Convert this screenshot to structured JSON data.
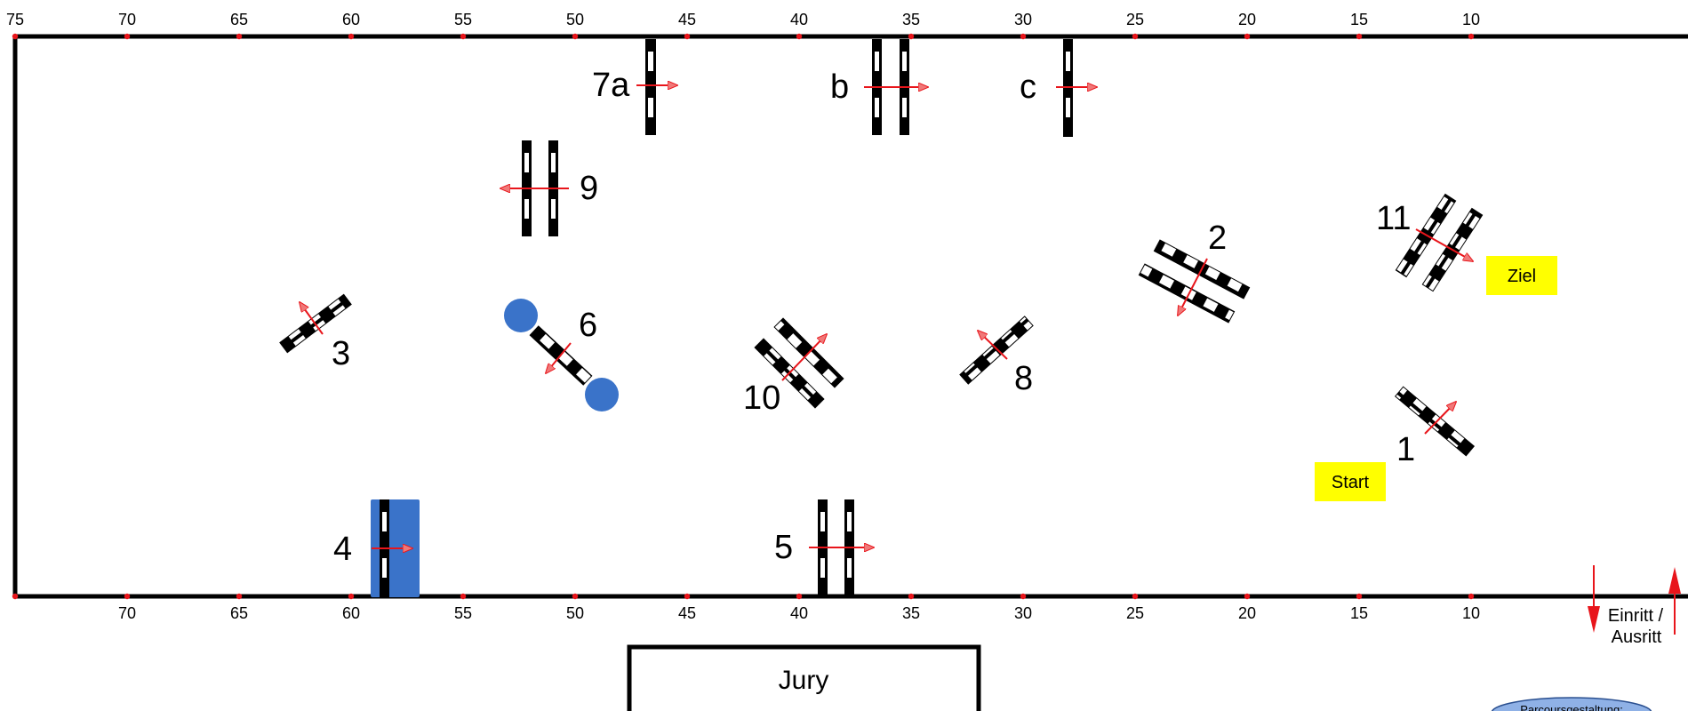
{
  "arena": {
    "top_scale": [
      "75",
      "70",
      "65",
      "60",
      "55",
      "50",
      "45",
      "40",
      "35",
      "30",
      "25",
      "20",
      "15",
      "10"
    ],
    "bottom_scale": [
      "70",
      "65",
      "60",
      "55",
      "50",
      "45",
      "40",
      "35",
      "30",
      "25",
      "20",
      "15",
      "10"
    ]
  },
  "obstacles": [
    {
      "label": "7a"
    },
    {
      "label": "b"
    },
    {
      "label": "c"
    },
    {
      "label": "9"
    },
    {
      "label": "3"
    },
    {
      "label": "6"
    },
    {
      "label": "10"
    },
    {
      "label": "8"
    },
    {
      "label": "2"
    },
    {
      "label": "11"
    },
    {
      "label": "1"
    },
    {
      "label": "4"
    },
    {
      "label": "5"
    }
  ],
  "markers": {
    "start": "Start",
    "finish": "Ziel",
    "jury": "Jury",
    "entry_line1": "Einritt /",
    "entry_line2": "Ausritt",
    "designer": "Parcoursgestaltung:"
  },
  "colors": {
    "arena_border": "#000000",
    "fence_dark": "#000000",
    "fence_light": "#ffffff",
    "direction_arrow": "#e8151b",
    "water": "#3a73c9",
    "highlight": "#ffff00"
  }
}
